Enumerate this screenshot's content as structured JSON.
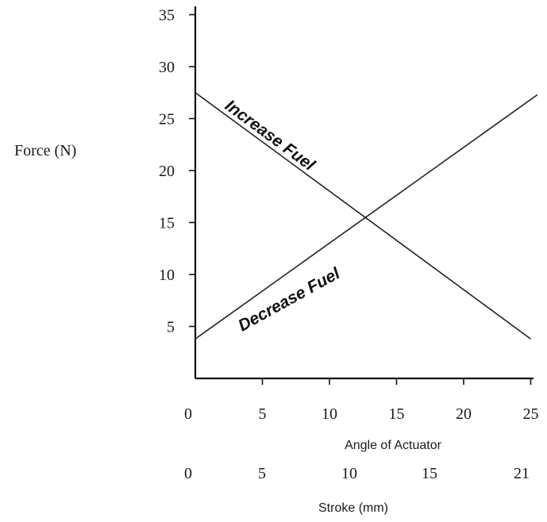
{
  "chart_data": {
    "type": "line",
    "ylabel": "Force (N)",
    "xlabel": "Angle of Actuator",
    "x2label": "Stroke (mm)",
    "ylim": [
      0,
      37
    ],
    "xlim": [
      0,
      25.5
    ],
    "y_ticks": [
      "5",
      "10",
      "15",
      "20",
      "25",
      "30",
      "35"
    ],
    "x_ticks": [
      "0",
      "5",
      "10",
      "15",
      "20",
      "25"
    ],
    "x2_ticks": [
      "0",
      "5",
      "10",
      "15",
      "21"
    ],
    "grid": false,
    "series": [
      {
        "name": "Increase Fuel",
        "x": [
          0,
          25
        ],
        "y": [
          27.5,
          3.8
        ]
      },
      {
        "name": "Decrease Fuel",
        "x": [
          0,
          25.5
        ],
        "y": [
          3.8,
          27.3
        ]
      }
    ]
  }
}
